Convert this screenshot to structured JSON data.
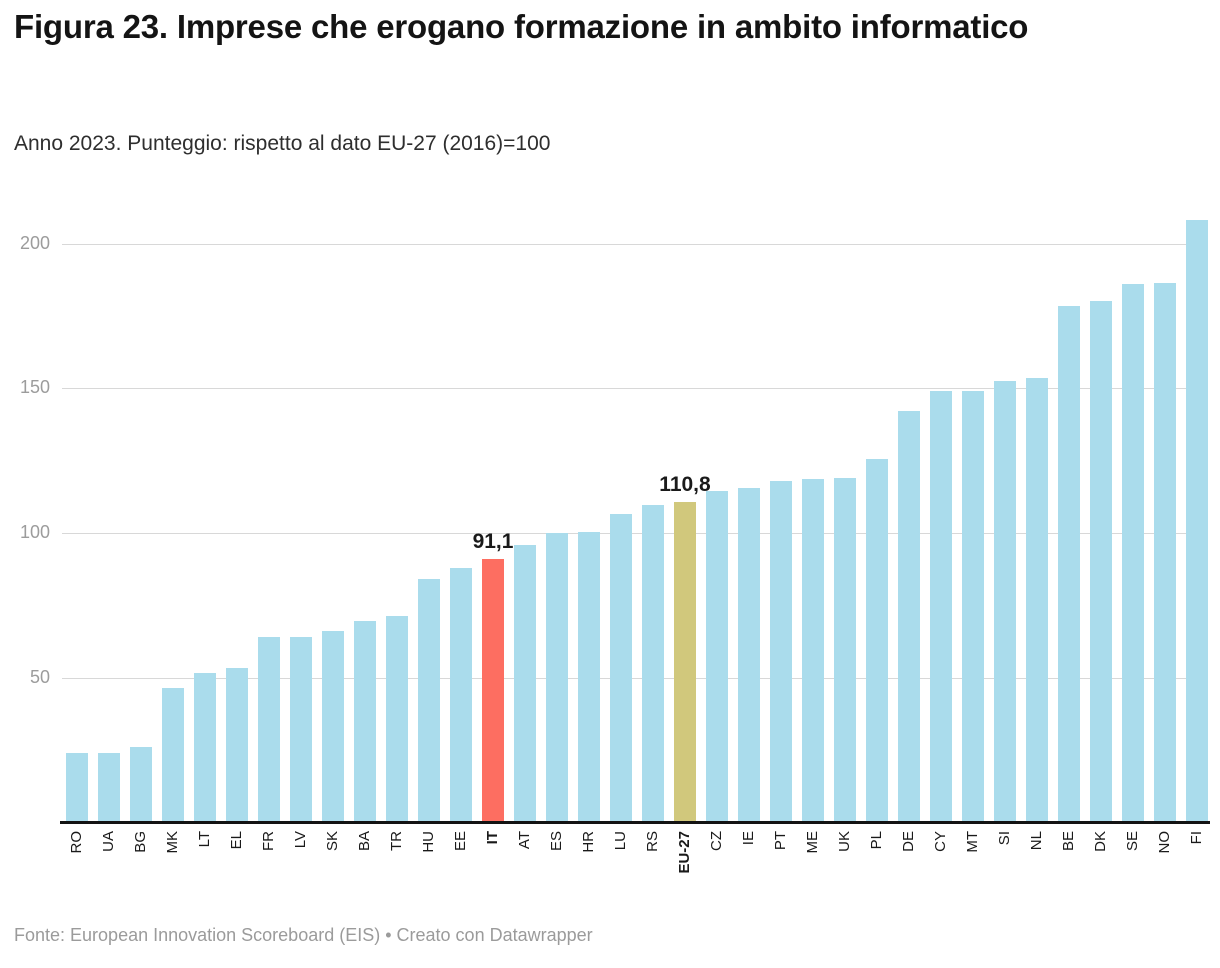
{
  "header": {
    "title": "Figura 23. Imprese che erogano formazione in ambito informatico",
    "subtitle": "Anno 2023. Punteggio: rispetto al dato EU-27 (2016)=100"
  },
  "footer": {
    "text": "Fonte: European Innovation Scoreboard (EIS) • Creato con Datawrapper"
  },
  "chart_data": {
    "type": "bar",
    "title": "Figura 23. Imprese che erogano formazione in ambito informatico",
    "subtitle": "Anno 2023. Punteggio: rispetto al dato EU-27 (2016)=100",
    "xlabel": "",
    "ylabel": "",
    "ylim": [
      0,
      215
    ],
    "grid": true,
    "y_ticks": [
      50,
      100,
      150,
      200
    ],
    "categories": [
      "RO",
      "UA",
      "BG",
      "MK",
      "LT",
      "EL",
      "FR",
      "LV",
      "SK",
      "BA",
      "TR",
      "HU",
      "EE",
      "IT",
      "AT",
      "ES",
      "HR",
      "LU",
      "RS",
      "EU-27",
      "CZ",
      "IE",
      "PT",
      "ME",
      "UK",
      "PL",
      "DE",
      "CY",
      "MT",
      "SI",
      "NL",
      "BE",
      "DK",
      "SE",
      "NO",
      "FI"
    ],
    "values": [
      24,
      24,
      26,
      46.5,
      51.5,
      53.5,
      64,
      64,
      66,
      69.5,
      71.5,
      84,
      88,
      91.1,
      96,
      100,
      100.5,
      106.5,
      109.5,
      110.8,
      114.5,
      115.5,
      118,
      118.5,
      119,
      125.5,
      142,
      149,
      149,
      152.5,
      153.5,
      178.5,
      180,
      186,
      186.5,
      208
    ],
    "bar_color": "#aadcec",
    "highlights": {
      "IT": "#fd6e61",
      "EU-27": "#d1c87c"
    },
    "value_labels": {
      "IT": "91,1",
      "EU-27": "110,8"
    },
    "bold_categories": [
      "IT",
      "EU-27"
    ],
    "grid_color": "#d8d8d8",
    "axis_color": "#131313",
    "tick_label_color": "#9c9c9c"
  }
}
